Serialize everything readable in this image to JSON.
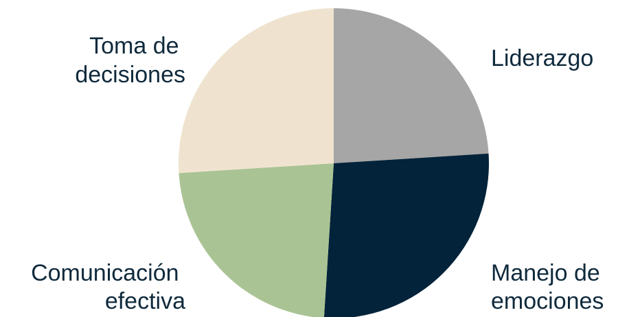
{
  "chart_data": {
    "type": "pie",
    "title": "",
    "start_angle_deg": 0,
    "direction": "clockwise",
    "slices": [
      {
        "label_lines": [
          "Liderazgo"
        ],
        "value": 24,
        "color": "#a6a6a6"
      },
      {
        "label_lines": [
          "Manejo de",
          "emociones"
        ],
        "value": 27,
        "color": "#02233a"
      },
      {
        "label_lines": [
          "Comunicación",
          "efectiva"
        ],
        "value": 23,
        "color": "#aac394"
      },
      {
        "label_lines": [
          "Toma de",
          "decisiones"
        ],
        "value": 26,
        "color": "#efe3cf"
      }
    ]
  }
}
